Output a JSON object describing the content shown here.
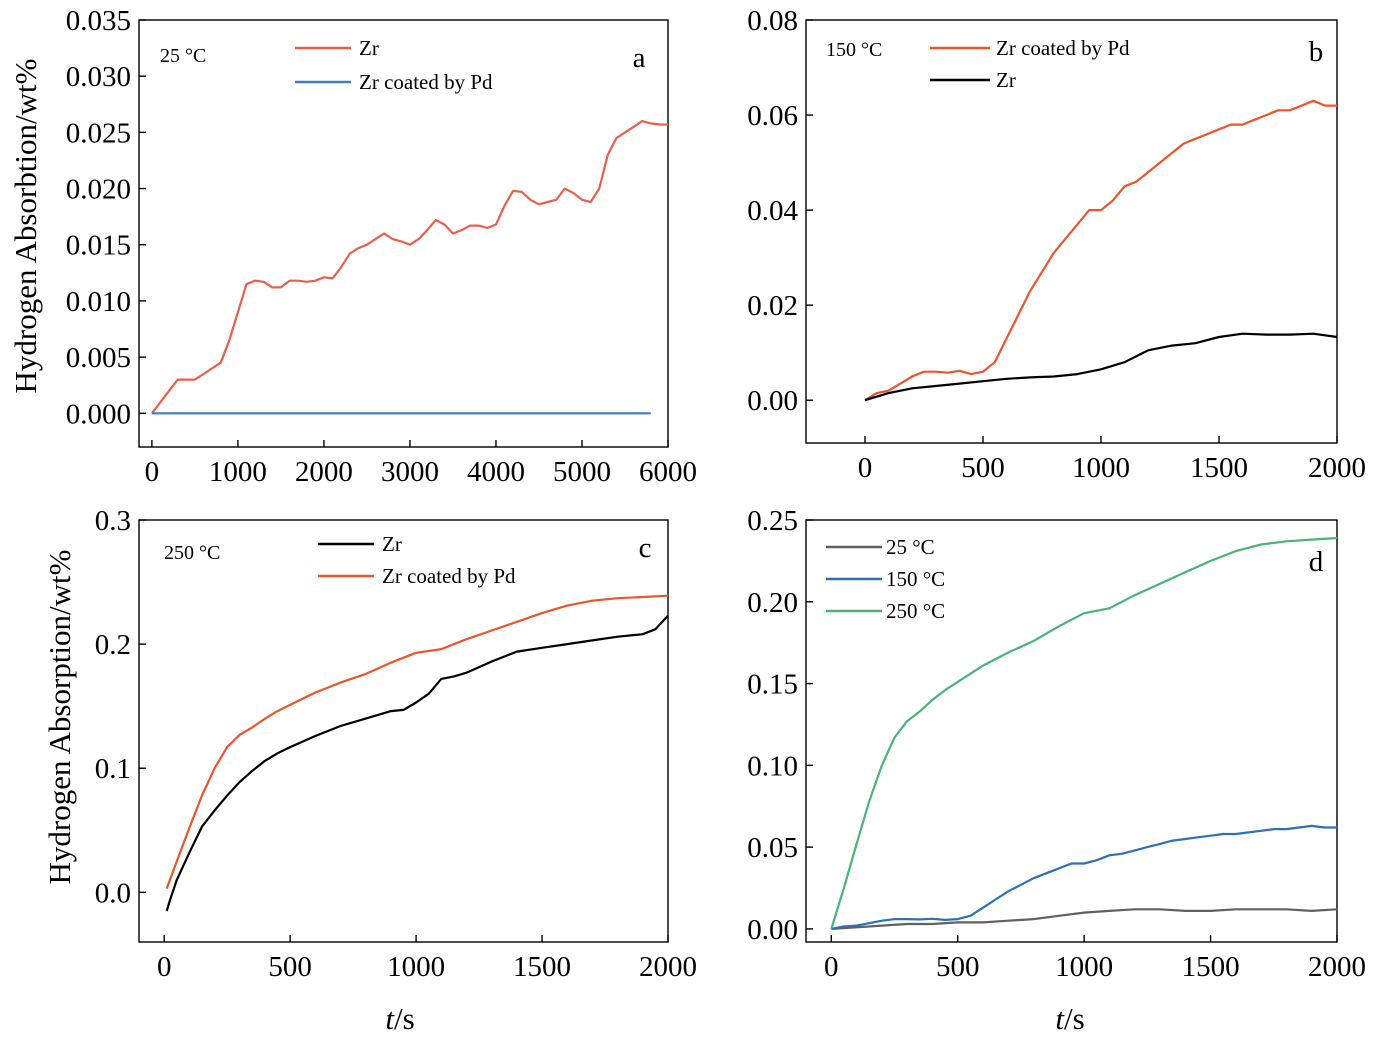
{
  "figure": {
    "y_axis_title": "Hydrogen Absorbtion/wt%",
    "y_axis_title_lower": "Hydrogen Absorption/wt%",
    "x_axis_title_italic": "t",
    "x_axis_title_rest": "/s"
  },
  "chart_data": [
    {
      "type": "line",
      "panel": "a",
      "temperature_label": "25 °C",
      "xlim": [
        -150,
        6000
      ],
      "ylim": [
        -0.003,
        0.035
      ],
      "xticks": [
        0,
        1000,
        2000,
        3000,
        4000,
        5000,
        6000
      ],
      "yticks": [
        0.0,
        0.005,
        0.01,
        0.015,
        0.02,
        0.025,
        0.03,
        0.035
      ],
      "ytick_labels": [
        "0.000",
        "0.005",
        "0.010",
        "0.015",
        "0.020",
        "0.025",
        "0.030",
        "0.035"
      ],
      "legend_position": "top-center",
      "series": [
        {
          "name": "Zr",
          "color": "#e8604c",
          "x": [
            0,
            100,
            200,
            300,
            400,
            500,
            600,
            700,
            800,
            900,
            1000,
            1100,
            1200,
            1300,
            1400,
            1500,
            1600,
            1700,
            1800,
            1900,
            2000,
            2100,
            2200,
            2300,
            2400,
            2500,
            2600,
            2700,
            2800,
            2900,
            3000,
            3100,
            3200,
            3300,
            3400,
            3500,
            3600,
            3700,
            3800,
            3900,
            4000,
            4100,
            4200,
            4300,
            4400,
            4500,
            4600,
            4700,
            4800,
            4900,
            5000,
            5100,
            5200,
            5300,
            5400,
            5500,
            5600,
            5700,
            5800,
            5900,
            6000
          ],
          "values": [
            0.0,
            0.001,
            0.002,
            0.003,
            0.003,
            0.003,
            0.0035,
            0.004,
            0.0045,
            0.0065,
            0.009,
            0.0115,
            0.0118,
            0.0117,
            0.0112,
            0.0112,
            0.0118,
            0.0118,
            0.0117,
            0.0118,
            0.0121,
            0.012,
            0.013,
            0.0142,
            0.0147,
            0.015,
            0.0155,
            0.016,
            0.0155,
            0.0153,
            0.015,
            0.0155,
            0.0163,
            0.0172,
            0.0168,
            0.016,
            0.0163,
            0.0167,
            0.0167,
            0.0165,
            0.0168,
            0.0185,
            0.0198,
            0.0197,
            0.019,
            0.0186,
            0.0188,
            0.019,
            0.02,
            0.0196,
            0.019,
            0.0188,
            0.02,
            0.023,
            0.0245,
            0.025,
            0.0255,
            0.026,
            0.0258,
            0.0257,
            0.0257
          ]
        },
        {
          "name": "Zr coated by Pd",
          "color": "#3c7dc6",
          "x": [
            0,
            5800
          ],
          "values": [
            0.0,
            0.0
          ]
        }
      ]
    },
    {
      "type": "line",
      "panel": "b",
      "temperature_label": "150 °C",
      "xlim": [
        -250,
        2000
      ],
      "ylim": [
        -0.009,
        0.08
      ],
      "xticks": [
        0,
        500,
        1000,
        1500,
        2000
      ],
      "yticks": [
        0.0,
        0.02,
        0.04,
        0.06,
        0.08
      ],
      "ytick_labels": [
        "0.00",
        "0.02",
        "0.04",
        "0.06",
        "0.08"
      ],
      "legend_position": "top-left",
      "series": [
        {
          "name": "Zr coated by Pd",
          "color": "#e8552e",
          "x": [
            0,
            50,
            100,
            150,
            200,
            250,
            300,
            350,
            400,
            450,
            500,
            550,
            600,
            650,
            700,
            750,
            800,
            850,
            900,
            950,
            1000,
            1050,
            1100,
            1150,
            1200,
            1250,
            1300,
            1350,
            1400,
            1450,
            1500,
            1550,
            1600,
            1650,
            1700,
            1750,
            1800,
            1850,
            1900,
            1950,
            2000
          ],
          "values": [
            0.0,
            0.0015,
            0.002,
            0.0035,
            0.005,
            0.006,
            0.006,
            0.0058,
            0.0062,
            0.0055,
            0.006,
            0.008,
            0.013,
            0.018,
            0.023,
            0.027,
            0.031,
            0.034,
            0.037,
            0.04,
            0.04,
            0.042,
            0.045,
            0.046,
            0.048,
            0.05,
            0.052,
            0.054,
            0.055,
            0.056,
            0.057,
            0.058,
            0.058,
            0.059,
            0.06,
            0.061,
            0.061,
            0.062,
            0.063,
            0.062,
            0.062
          ]
        },
        {
          "name": "Zr",
          "color": "#000000",
          "x": [
            0,
            100,
            200,
            300,
            400,
            500,
            600,
            700,
            800,
            900,
            1000,
            1100,
            1200,
            1300,
            1400,
            1500,
            1600,
            1700,
            1800,
            1900,
            2000
          ],
          "values": [
            0.0,
            0.0015,
            0.0025,
            0.003,
            0.0035,
            0.004,
            0.0045,
            0.0048,
            0.005,
            0.0055,
            0.0065,
            0.008,
            0.0105,
            0.0115,
            0.012,
            0.0133,
            0.014,
            0.0138,
            0.0138,
            0.014,
            0.0133
          ]
        }
      ]
    },
    {
      "type": "line",
      "panel": "c",
      "temperature_label": "250 °C",
      "xlim": [
        -100,
        2000
      ],
      "ylim": [
        -0.04,
        0.3
      ],
      "xticks": [
        0,
        500,
        1000,
        1500,
        2000
      ],
      "yticks": [
        0.0,
        0.1,
        0.2,
        0.3
      ],
      "ytick_labels": [
        "0.0",
        "0.1",
        "0.2",
        "0.3"
      ],
      "legend_position": "top-center",
      "series": [
        {
          "name": "Zr",
          "color": "#000000",
          "x": [
            10,
            25,
            50,
            100,
            150,
            200,
            250,
            300,
            350,
            400,
            450,
            500,
            600,
            700,
            800,
            900,
            950,
            1000,
            1050,
            1100,
            1150,
            1200,
            1300,
            1400,
            1500,
            1600,
            1700,
            1800,
            1900,
            1950,
            2000
          ],
          "values": [
            -0.015,
            -0.005,
            0.01,
            0.032,
            0.053,
            0.066,
            0.078,
            0.089,
            0.098,
            0.106,
            0.112,
            0.117,
            0.126,
            0.134,
            0.14,
            0.146,
            0.147,
            0.153,
            0.16,
            0.172,
            0.174,
            0.177,
            0.186,
            0.194,
            0.197,
            0.2,
            0.203,
            0.206,
            0.208,
            0.212,
            0.223
          ]
        },
        {
          "name": "Zr coated by Pd",
          "color": "#e8552e",
          "x": [
            10,
            50,
            100,
            150,
            200,
            250,
            300,
            350,
            400,
            450,
            500,
            600,
            700,
            800,
            900,
            1000,
            1100,
            1200,
            1300,
            1400,
            1500,
            1600,
            1700,
            1800,
            1900,
            2000
          ],
          "values": [
            0.003,
            0.025,
            0.052,
            0.078,
            0.1,
            0.117,
            0.127,
            0.133,
            0.14,
            0.146,
            0.151,
            0.161,
            0.169,
            0.176,
            0.185,
            0.193,
            0.196,
            0.204,
            0.211,
            0.218,
            0.225,
            0.231,
            0.235,
            0.237,
            0.238,
            0.239
          ]
        }
      ]
    },
    {
      "type": "line",
      "panel": "d",
      "xlim": [
        -100,
        2000
      ],
      "ylim": [
        -0.008,
        0.25
      ],
      "xticks": [
        0,
        500,
        1000,
        1500,
        2000
      ],
      "yticks": [
        0.0,
        0.05,
        0.1,
        0.15,
        0.2,
        0.25
      ],
      "ytick_labels": [
        "0.00",
        "0.05",
        "0.10",
        "0.15",
        "0.20",
        "0.25"
      ],
      "legend_position": "top-left",
      "series": [
        {
          "name": "25 °C",
          "color": "#606060",
          "x": [
            0,
            100,
            200,
            300,
            400,
            500,
            600,
            700,
            800,
            900,
            1000,
            1100,
            1200,
            1300,
            1400,
            1500,
            1600,
            1700,
            1800,
            1900,
            2000
          ],
          "values": [
            0.0,
            0.001,
            0.002,
            0.003,
            0.003,
            0.004,
            0.004,
            0.005,
            0.006,
            0.008,
            0.01,
            0.011,
            0.012,
            0.012,
            0.011,
            0.011,
            0.012,
            0.012,
            0.012,
            0.011,
            0.012
          ]
        },
        {
          "name": "150 °C",
          "color": "#2f6fb5",
          "x": [
            0,
            50,
            100,
            150,
            200,
            250,
            300,
            350,
            400,
            450,
            500,
            550,
            600,
            650,
            700,
            750,
            800,
            850,
            900,
            950,
            1000,
            1050,
            1100,
            1150,
            1200,
            1250,
            1300,
            1350,
            1400,
            1450,
            1500,
            1550,
            1600,
            1650,
            1700,
            1750,
            1800,
            1850,
            1900,
            1950,
            2000
          ],
          "values": [
            0.0,
            0.0015,
            0.002,
            0.0035,
            0.005,
            0.006,
            0.006,
            0.0058,
            0.0062,
            0.0055,
            0.006,
            0.008,
            0.013,
            0.018,
            0.023,
            0.027,
            0.031,
            0.034,
            0.037,
            0.04,
            0.04,
            0.042,
            0.045,
            0.046,
            0.048,
            0.05,
            0.052,
            0.054,
            0.055,
            0.056,
            0.057,
            0.058,
            0.058,
            0.059,
            0.06,
            0.061,
            0.061,
            0.062,
            0.063,
            0.062,
            0.062
          ]
        },
        {
          "name": "250 °C",
          "color": "#4bb377",
          "x": [
            0,
            50,
            100,
            150,
            200,
            250,
            300,
            350,
            400,
            450,
            500,
            600,
            700,
            800,
            900,
            1000,
            1100,
            1200,
            1300,
            1400,
            1500,
            1600,
            1700,
            1800,
            1900,
            2000
          ],
          "values": [
            0.0,
            0.025,
            0.052,
            0.078,
            0.1,
            0.117,
            0.127,
            0.133,
            0.14,
            0.146,
            0.151,
            0.161,
            0.169,
            0.176,
            0.185,
            0.193,
            0.196,
            0.204,
            0.211,
            0.218,
            0.225,
            0.231,
            0.235,
            0.237,
            0.238,
            0.239
          ]
        }
      ]
    }
  ]
}
